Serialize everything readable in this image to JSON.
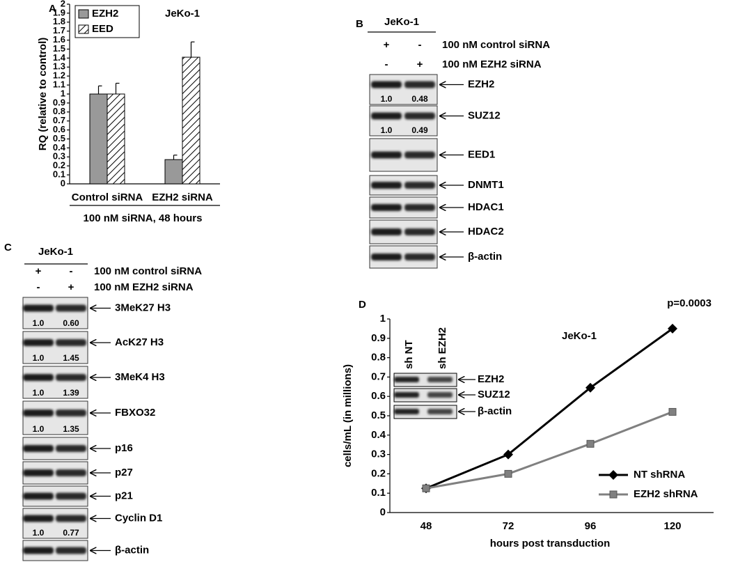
{
  "chart_data": [
    {
      "type": "bar",
      "panel_label": "A",
      "title": "JeKo-1",
      "ylabel": "RQ (relative to control)",
      "xlabel": "100 nM siRNA, 48 hours",
      "categories": [
        "Control siRNA",
        "EZH2 siRNA"
      ],
      "series": [
        {
          "name": "EZH2",
          "color": "#999999",
          "hatch": false,
          "values": [
            1.0,
            0.27
          ],
          "errors": [
            0.09,
            0.05
          ]
        },
        {
          "name": "EED",
          "color": "#ffffff",
          "hatch": true,
          "values": [
            1.0,
            1.41
          ],
          "errors": [
            0.12,
            0.17
          ]
        }
      ],
      "ylim": [
        0,
        2
      ],
      "yticks": [
        0,
        0.1,
        0.2,
        0.3,
        0.4,
        0.5,
        0.6,
        0.7,
        0.8,
        0.9,
        1,
        1.1,
        1.2,
        1.3,
        1.4,
        1.5,
        1.6,
        1.7,
        1.8,
        1.9,
        2
      ],
      "legend": "upper left"
    },
    {
      "type": "line",
      "panel_label": "D",
      "title": "JeKo-1",
      "annotation": "p=0.0003",
      "ylabel": "cells/mL (in millions)",
      "xlabel": "hours post transduction",
      "categories": [
        "48",
        "72",
        "96",
        "120"
      ],
      "series": [
        {
          "name": "NT shRNA",
          "color": "#000000",
          "marker": "diamond",
          "values": [
            0.125,
            0.3,
            0.645,
            0.95
          ]
        },
        {
          "name": "EZH2 shRNA",
          "color": "#808080",
          "marker": "square",
          "values": [
            0.125,
            0.2,
            0.355,
            0.52
          ]
        }
      ],
      "ylim": [
        0,
        1
      ],
      "yticks": [
        0,
        0.1,
        0.2,
        0.3,
        0.4,
        0.5,
        0.6,
        0.7,
        0.8,
        0.9,
        1
      ],
      "legend": "lower right",
      "inset": {
        "lanes": [
          "sh NT",
          "sh EZH2"
        ],
        "bands": [
          "EZH2",
          "SUZ12",
          "β-actin"
        ]
      }
    }
  ],
  "blots": [
    {
      "panel_label": "B",
      "cell_line": "JeKo-1",
      "conditions": [
        {
          "label": "100 nM control siRNA",
          "signs": [
            "+",
            "-"
          ]
        },
        {
          "label": "100 nM EZH2 siRNA",
          "signs": [
            "-",
            "+"
          ]
        }
      ],
      "bands": [
        {
          "label": "EZH2",
          "quant": [
            "1.0",
            "0.48"
          ]
        },
        {
          "label": "SUZ12",
          "quant": [
            "1.0",
            "0.49"
          ]
        },
        {
          "label": "EED1"
        },
        {
          "label": "DNMT1"
        },
        {
          "label": "HDAC1"
        },
        {
          "label": "HDAC2"
        },
        {
          "label": "β-actin"
        }
      ]
    },
    {
      "panel_label": "C",
      "cell_line": "JeKo-1",
      "conditions": [
        {
          "label": "100 nM control siRNA",
          "signs": [
            "+",
            "-"
          ]
        },
        {
          "label": "100 nM EZH2 siRNA",
          "signs": [
            "-",
            "+"
          ]
        }
      ],
      "bands": [
        {
          "label": "3MeK27 H3",
          "quant": [
            "1.0",
            "0.60"
          ]
        },
        {
          "label": "AcK27 H3",
          "quant": [
            "1.0",
            "1.45"
          ]
        },
        {
          "label": "3MeK4 H3",
          "quant": [
            "1.0",
            "1.39"
          ]
        },
        {
          "label": "FBXO32",
          "quant": [
            "1.0",
            "1.35"
          ]
        },
        {
          "label": "p16"
        },
        {
          "label": "p27"
        },
        {
          "label": "p21"
        },
        {
          "label": "Cyclin D1",
          "quant": [
            "1.0",
            "0.77"
          ]
        },
        {
          "label": "β-actin"
        }
      ]
    }
  ]
}
